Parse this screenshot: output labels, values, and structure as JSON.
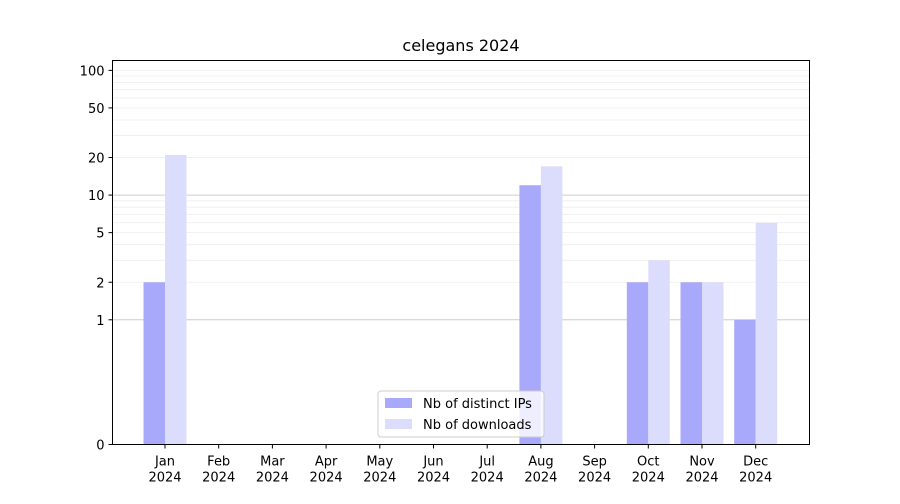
{
  "chart_data": {
    "type": "bar",
    "title": "celegans 2024",
    "xlabel": "",
    "ylabel": "",
    "y_scale": "symlog",
    "y_ticks": [
      0,
      1,
      2,
      5,
      10,
      20,
      50,
      100
    ],
    "y_tick_labels": [
      "0",
      "1",
      "2",
      "5",
      "10",
      "20",
      "50",
      "100"
    ],
    "ylim": [
      0,
      120
    ],
    "categories": [
      [
        "Jan",
        "2024"
      ],
      [
        "Feb",
        "2024"
      ],
      [
        "Mar",
        "2024"
      ],
      [
        "Apr",
        "2024"
      ],
      [
        "May",
        "2024"
      ],
      [
        "Jun",
        "2024"
      ],
      [
        "Jul",
        "2024"
      ],
      [
        "Aug",
        "2024"
      ],
      [
        "Sep",
        "2024"
      ],
      [
        "Oct",
        "2024"
      ],
      [
        "Nov",
        "2024"
      ],
      [
        "Dec",
        "2024"
      ]
    ],
    "series": [
      {
        "name": "Nb of distinct IPs",
        "color": "#a9a9fb",
        "values": [
          2,
          0,
          0,
          0,
          0,
          0,
          0,
          12,
          0,
          2,
          2,
          1
        ]
      },
      {
        "name": "Nb of downloads",
        "color": "#dcdcfc",
        "values": [
          21,
          0,
          0,
          0,
          0,
          0,
          0,
          17,
          0,
          3,
          2,
          6
        ]
      }
    ],
    "grid": true,
    "legend_position": "lower center"
  }
}
